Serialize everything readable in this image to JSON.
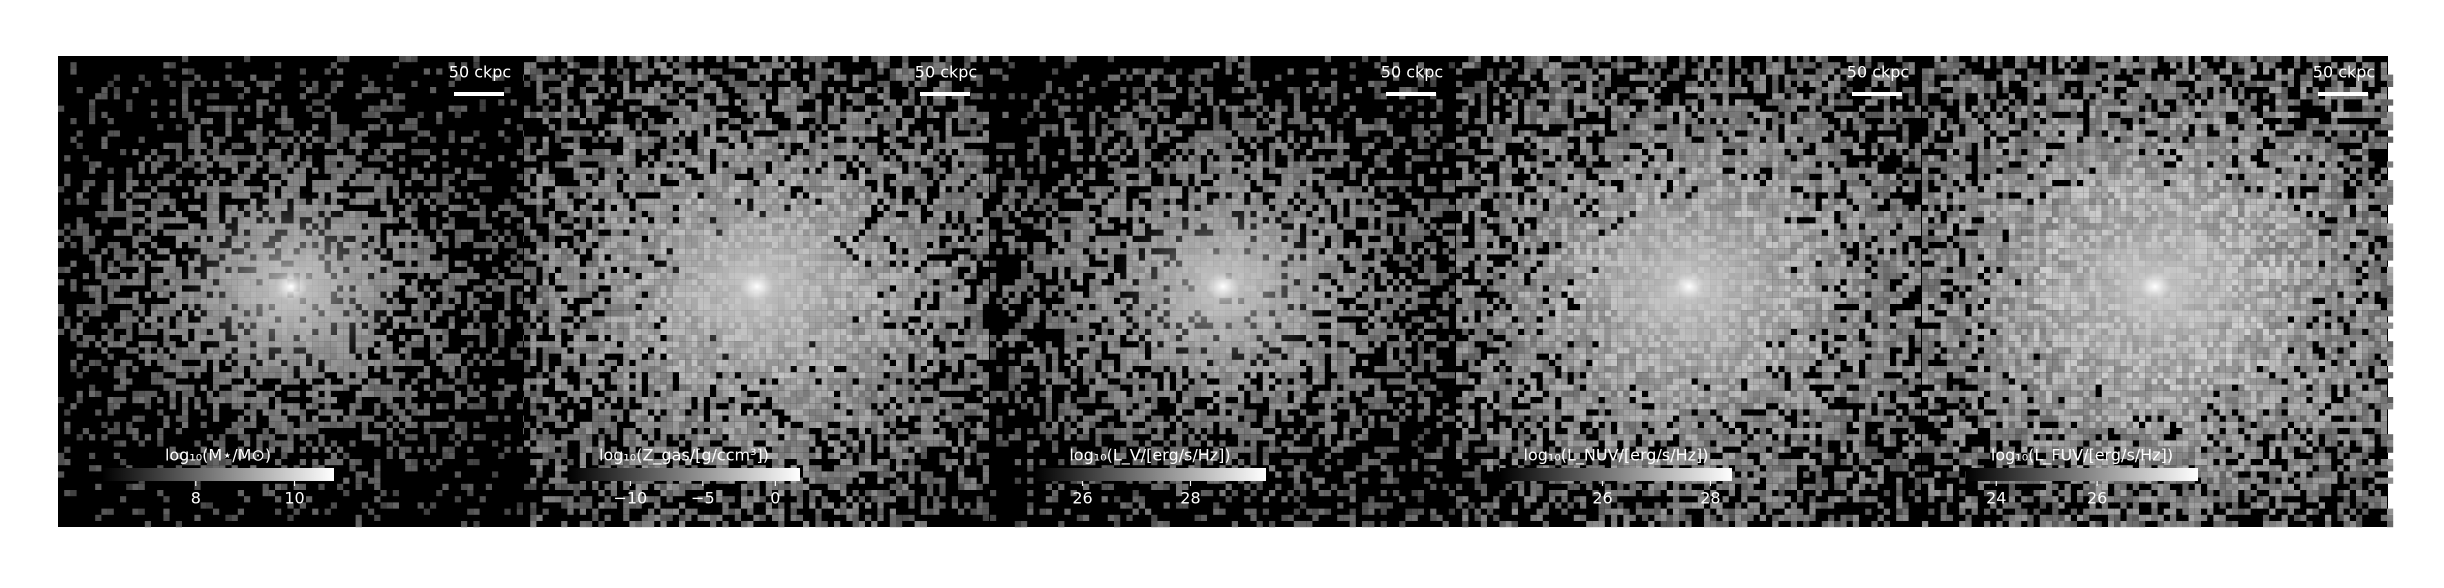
{
  "chart_data": [
    {
      "type": "image",
      "scale_bar": "50 ckpc",
      "colorbar_label": "log₁₀(M⋆/M⊙)",
      "colorbar_lim": [
        6.1,
        10.8
      ],
      "colorbar_ticks": [
        8,
        10
      ],
      "spread": 0.55
    },
    {
      "type": "image",
      "scale_bar": "50 ckpc",
      "colorbar_label": "log₁₀(Z_gas/[g/ccm³])",
      "colorbar_lim": [
        -14.3,
        1.7
      ],
      "colorbar_ticks": [
        {
          "value": -10,
          "label": "−10"
        },
        {
          "value": -5,
          "label": "−5"
        },
        0
      ],
      "spread": 0.95
    },
    {
      "type": "image",
      "scale_bar": "50 ckpc",
      "colorbar_label": "log₁₀(L_V/[erg/s/Hz])",
      "colorbar_lim": [
        25.1,
        29.4
      ],
      "colorbar_ticks": [
        26,
        28
      ],
      "spread": 0.7
    },
    {
      "type": "image",
      "scale_bar": "50 ckpc",
      "colorbar_label": "log₁₀(L_NUV/[erg/s/Hz])",
      "colorbar_lim": [
        24.1,
        28.4
      ],
      "colorbar_ticks": [
        26,
        28
      ],
      "spread": 1.0
    },
    {
      "type": "image",
      "scale_bar": "50 ckpc",
      "colorbar_label": "log₁₀(L_FUV/[erg/s/Hz])",
      "colorbar_lim": [
        23.4,
        28.0
      ],
      "colorbar_ticks": [
        24,
        26
      ],
      "spread": 1.1
    }
  ]
}
